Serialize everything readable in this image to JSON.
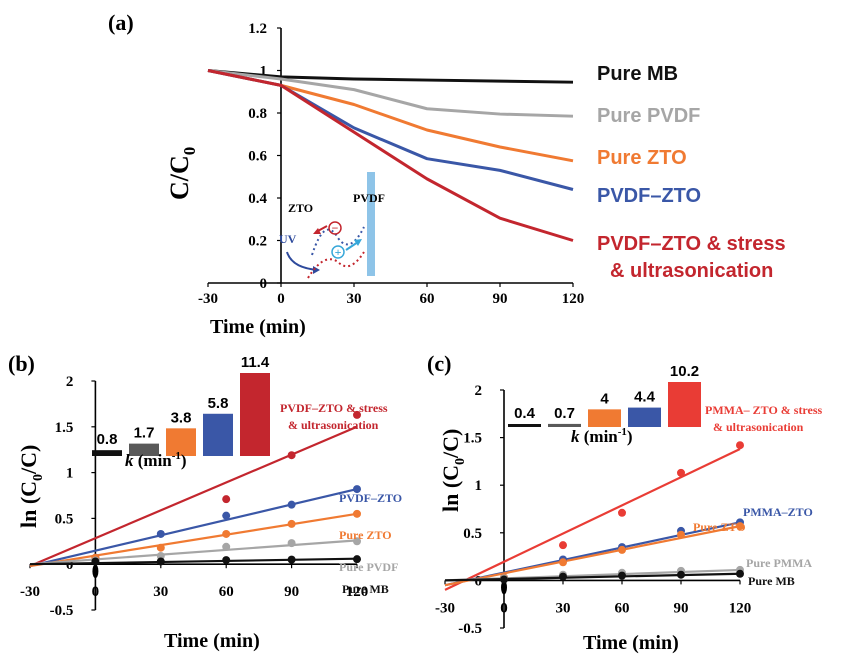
{
  "colors": {
    "pure_mb": "#111111",
    "pure_pvdf": "#a6a6a6",
    "pure_pmma": "#a6a6a6",
    "pure_zto": "#f07a32",
    "pvdf_zto": "#3a57a7",
    "pmma_zto": "#3a57a7",
    "stress_ultra": "#c3262e",
    "bar_gray": "#595959",
    "bar_red_c": "#e93c35",
    "pvdf_membrane": "#8ec4e8",
    "hole": "#37a7d9"
  },
  "chart_data": [
    {
      "panel": "(a)",
      "type": "line",
      "ylabel": "C/C",
      "ylabel_sub": "0",
      "xlabel": "Time (min)",
      "x": [
        -30,
        0,
        30,
        60,
        90,
        120
      ],
      "xticks": [
        -30,
        0,
        30,
        60,
        90,
        120
      ],
      "yticks": [
        0,
        0.2,
        0.4,
        0.6,
        0.8,
        1,
        1.2
      ],
      "xlim": [
        -30,
        120
      ],
      "ylim": [
        0,
        1.2
      ],
      "series": [
        {
          "name": "Pure MB",
          "key": "pure_mb",
          "values": [
            1.0,
            0.97,
            0.96,
            0.955,
            0.95,
            0.945
          ]
        },
        {
          "name": "Pure PVDF",
          "key": "pure_pvdf",
          "values": [
            1.0,
            0.96,
            0.91,
            0.82,
            0.795,
            0.785
          ]
        },
        {
          "name": "Pure ZTO",
          "key": "pure_zto",
          "values": [
            1.0,
            0.93,
            0.84,
            0.72,
            0.64,
            0.575
          ]
        },
        {
          "name": "PVDF–ZTO",
          "key": "pvdf_zto",
          "values": [
            1.0,
            0.93,
            0.73,
            0.585,
            0.53,
            0.44
          ]
        },
        {
          "name": "PVDF–ZTO & stress",
          "name2": "& ultrasonication",
          "key": "stress_ultra",
          "values": [
            1.0,
            0.93,
            0.71,
            0.49,
            0.305,
            0.2
          ]
        }
      ],
      "inset": {
        "uv": "UV",
        "zto": "ZTO",
        "pvdf": "PVDF",
        "minus": "−",
        "plus": "+"
      }
    },
    {
      "panel": "(b)",
      "type": "scatter",
      "ylabel": "ln (C",
      "ylabel_sub": "0",
      "ylabel_end": "/C)",
      "xlabel": "Time (min)",
      "xticks": [
        -30,
        0,
        30,
        60,
        90,
        120
      ],
      "yticks": [
        -0.5,
        0,
        0.5,
        1,
        1.5,
        2
      ],
      "xlim": [
        -30,
        120
      ],
      "ylim": [
        -0.5,
        2
      ],
      "series": [
        {
          "name": "PVDF–ZTO & stress",
          "name2": "& ultrasonication",
          "key": "stress_ultra",
          "x": [
            60,
            90,
            120
          ],
          "values": [
            0.71,
            1.19,
            1.63
          ],
          "fit": [
            [
              -30,
              -0.02
            ],
            [
              120,
              1.5
            ]
          ]
        },
        {
          "name": "PVDF–ZTO",
          "key": "pvdf_zto",
          "x": [
            0,
            30,
            60,
            90,
            120
          ],
          "values": [
            0.07,
            0.33,
            0.53,
            0.65,
            0.82
          ],
          "fit": [
            [
              -30,
              -0.02
            ],
            [
              120,
              0.82
            ]
          ]
        },
        {
          "name": "Pure ZTO",
          "key": "pure_zto",
          "x": [
            0,
            30,
            60,
            90,
            120
          ],
          "values": [
            0.07,
            0.18,
            0.33,
            0.44,
            0.55
          ],
          "fit": [
            [
              -30,
              -0.02
            ],
            [
              120,
              0.55
            ]
          ]
        },
        {
          "name": "Pure PVDF",
          "key": "pure_pvdf",
          "x": [
            0,
            30,
            60,
            90,
            120
          ],
          "values": [
            0.04,
            0.09,
            0.19,
            0.23,
            0.25
          ],
          "fit": [
            [
              -30,
              0.0
            ],
            [
              120,
              0.26
            ]
          ]
        },
        {
          "name": "Pure MB",
          "key": "pure_mb",
          "x": [
            0,
            30,
            60,
            90,
            120
          ],
          "values": [
            0.03,
            0.03,
            0.045,
            0.05,
            0.055
          ],
          "fit": [
            [
              -30,
              0.0
            ],
            [
              120,
              0.06
            ]
          ]
        }
      ],
      "rate_bars": {
        "axis_label": "k",
        "axis_unit": " (min",
        "axis_sup": "-1",
        "axis_end": ")",
        "values": [
          0.8,
          1.7,
          3.8,
          5.8,
          11.4
        ],
        "labels": [
          "0.8",
          "1.7",
          "3.8",
          "5.8",
          "11.4"
        ],
        "keys": [
          "pure_mb",
          "bar_gray",
          "pure_zto",
          "pvdf_zto",
          "stress_ultra"
        ]
      }
    },
    {
      "panel": "(c)",
      "type": "scatter",
      "ylabel": "ln (C",
      "ylabel_sub": "0",
      "ylabel_end": "/C)",
      "xlabel": "Time (min)",
      "xticks": [
        -30,
        0,
        30,
        60,
        90,
        120
      ],
      "yticks": [
        -0.5,
        0,
        0.5,
        1,
        1.5,
        2
      ],
      "xlim": [
        -30,
        120
      ],
      "ylim": [
        -0.5,
        2
      ],
      "series": [
        {
          "name": "PMMA– ZTO & stress",
          "name2": "& ultrasonication",
          "key": "bar_red_c",
          "x": [
            30,
            60,
            90,
            120
          ],
          "values": [
            0.37,
            0.71,
            1.13,
            1.42
          ],
          "fit": [
            [
              -30,
              -0.1
            ],
            [
              120,
              1.38
            ]
          ]
        },
        {
          "name": "PMMA–ZTO",
          "key": "pmma_zto",
          "x": [
            0,
            30,
            60,
            90,
            120
          ],
          "values": [
            0.03,
            0.22,
            0.35,
            0.52,
            0.61
          ],
          "fit": [
            [
              -30,
              -0.05
            ],
            [
              120,
              0.61
            ]
          ]
        },
        {
          "name": "Pure ZTO",
          "key": "pure_zto",
          "x": [
            0,
            30,
            60,
            90,
            120
          ],
          "values": [
            0.03,
            0.19,
            0.32,
            0.48,
            0.57
          ],
          "fit": [
            [
              -30,
              -0.05
            ],
            [
              120,
              0.57
            ]
          ]
        },
        {
          "name": "Pure PMMA",
          "key": "pure_pmma",
          "x": [
            0,
            30,
            60,
            90,
            120
          ],
          "values": [
            0.02,
            0.06,
            0.08,
            0.1,
            0.11
          ],
          "fit": [
            [
              -30,
              0.0
            ],
            [
              120,
              0.11
            ]
          ]
        },
        {
          "name": "Pure MB",
          "key": "pure_mb",
          "x": [
            0,
            30,
            60,
            90,
            120
          ],
          "values": [
            0.01,
            0.04,
            0.05,
            0.06,
            0.07
          ],
          "fit": [
            [
              -30,
              0.0
            ],
            [
              120,
              0.07
            ]
          ]
        }
      ],
      "rate_bars": {
        "axis_label": "k",
        "axis_unit": " (min",
        "axis_sup": "-1",
        "axis_end": ")",
        "values": [
          0.4,
          0.7,
          4,
          4.4,
          10.2
        ],
        "labels": [
          "0.4",
          "0.7",
          "4",
          "4.4",
          "10.2"
        ],
        "keys": [
          "pure_mb",
          "bar_gray",
          "pure_zto",
          "pmma_zto",
          "bar_red_c"
        ]
      }
    }
  ]
}
